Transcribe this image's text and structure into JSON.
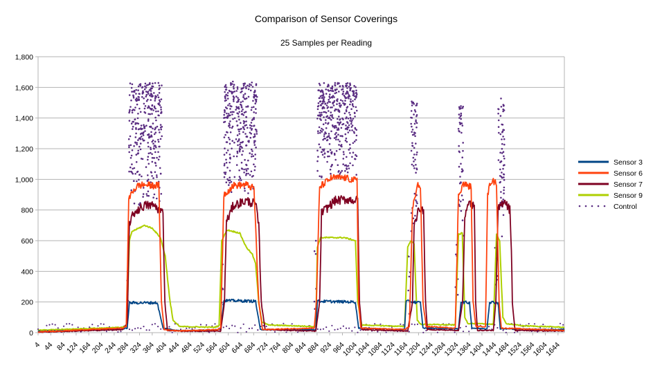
{
  "chart_data": {
    "type": "line",
    "title": "Comparison of Sensor Coverings",
    "subtitle": "25 Samples per Reading",
    "xlabel": "",
    "ylabel": "",
    "ylim": [
      0,
      1800
    ],
    "xlim": [
      4,
      1664
    ],
    "y_ticks": [
      0,
      200,
      400,
      600,
      800,
      1000,
      1200,
      1400,
      1600,
      1800
    ],
    "y_tick_labels": [
      "0",
      "200",
      "400",
      "600",
      "800",
      "1,000",
      "1,200",
      "1,400",
      "1,600",
      "1,800"
    ],
    "x_tick_labels": [
      "4",
      "44",
      "84",
      "124",
      "164",
      "204",
      "244",
      "284",
      "324",
      "364",
      "404",
      "444",
      "484",
      "524",
      "564",
      "604",
      "644",
      "684",
      "724",
      "764",
      "804",
      "844",
      "884",
      "924",
      "964",
      "1004",
      "1044",
      "1084",
      "1124",
      "1164",
      "1204",
      "1244",
      "1284",
      "1324",
      "1364",
      "1404",
      "1444",
      "1484",
      "1524",
      "1564",
      "1604",
      "1644"
    ],
    "grid": "horizontal",
    "legend_position": "right",
    "colors": {
      "Sensor 3": "#004586",
      "Sensor 6": "#ff420e",
      "Sensor 7": "#7e0021",
      "Sensor 9": "#aecf00",
      "Control": "#5a2d82"
    },
    "series": [
      {
        "name": "Sensor 3",
        "style": "line",
        "points": [
          [
            4,
            8
          ],
          [
            270,
            22
          ],
          [
            285,
            30
          ],
          [
            292,
            195
          ],
          [
            380,
            195
          ],
          [
            398,
            30
          ],
          [
            450,
            12
          ],
          [
            560,
            18
          ],
          [
            580,
            25
          ],
          [
            590,
            210
          ],
          [
            690,
            205
          ],
          [
            705,
            20
          ],
          [
            880,
            20
          ],
          [
            885,
            205
          ],
          [
            1005,
            200
          ],
          [
            1015,
            30
          ],
          [
            1150,
            20
          ],
          [
            1160,
            25
          ],
          [
            1165,
            205
          ],
          [
            1210,
            195
          ],
          [
            1218,
            30
          ],
          [
            1330,
            25
          ],
          [
            1338,
            200
          ],
          [
            1365,
            195
          ],
          [
            1372,
            30
          ],
          [
            1420,
            25
          ],
          [
            1428,
            200
          ],
          [
            1455,
            195
          ],
          [
            1462,
            25
          ],
          [
            1650,
            20
          ],
          [
            1664,
            25
          ]
        ]
      },
      {
        "name": "Sensor 6",
        "style": "line",
        "points": [
          [
            4,
            5
          ],
          [
            270,
            30
          ],
          [
            282,
            40
          ],
          [
            290,
            860
          ],
          [
            300,
            920
          ],
          [
            320,
            960
          ],
          [
            340,
            965
          ],
          [
            360,
            960
          ],
          [
            385,
            960
          ],
          [
            393,
            200
          ],
          [
            402,
            20
          ],
          [
            450,
            12
          ],
          [
            570,
            20
          ],
          [
            580,
            30
          ],
          [
            590,
            900
          ],
          [
            620,
            960
          ],
          [
            660,
            965
          ],
          [
            685,
            940
          ],
          [
            700,
            200
          ],
          [
            712,
            20
          ],
          [
            875,
            30
          ],
          [
            882,
            200
          ],
          [
            892,
            950
          ],
          [
            930,
            1010
          ],
          [
            970,
            1010
          ],
          [
            1010,
            990
          ],
          [
            1015,
            200
          ],
          [
            1022,
            30
          ],
          [
            1160,
            20
          ],
          [
            1175,
            40
          ],
          [
            1185,
            800
          ],
          [
            1200,
            970
          ],
          [
            1210,
            950
          ],
          [
            1218,
            200
          ],
          [
            1228,
            40
          ],
          [
            1320,
            30
          ],
          [
            1330,
            900
          ],
          [
            1345,
            970
          ],
          [
            1370,
            950
          ],
          [
            1376,
            200
          ],
          [
            1385,
            40
          ],
          [
            1415,
            40
          ],
          [
            1422,
            900
          ],
          [
            1432,
            990
          ],
          [
            1450,
            980
          ],
          [
            1458,
            200
          ],
          [
            1465,
            30
          ],
          [
            1664,
            15
          ]
        ]
      },
      {
        "name": "Sensor 7",
        "style": "line",
        "points": [
          [
            4,
            3
          ],
          [
            270,
            20
          ],
          [
            285,
            60
          ],
          [
            292,
            720
          ],
          [
            310,
            790
          ],
          [
            340,
            830
          ],
          [
            370,
            830
          ],
          [
            398,
            780
          ],
          [
            404,
            200
          ],
          [
            412,
            15
          ],
          [
            460,
            10
          ],
          [
            580,
            10
          ],
          [
            592,
            200
          ],
          [
            598,
            720
          ],
          [
            620,
            830
          ],
          [
            660,
            860
          ],
          [
            690,
            840
          ],
          [
            700,
            700
          ],
          [
            708,
            200
          ],
          [
            720,
            20
          ],
          [
            880,
            10
          ],
          [
            892,
            200
          ],
          [
            898,
            780
          ],
          [
            940,
            860
          ],
          [
            980,
            870
          ],
          [
            1012,
            860
          ],
          [
            1018,
            200
          ],
          [
            1025,
            20
          ],
          [
            1170,
            10
          ],
          [
            1185,
            200
          ],
          [
            1190,
            720
          ],
          [
            1210,
            820
          ],
          [
            1220,
            780
          ],
          [
            1226,
            200
          ],
          [
            1232,
            20
          ],
          [
            1330,
            15
          ],
          [
            1343,
            200
          ],
          [
            1350,
            760
          ],
          [
            1365,
            850
          ],
          [
            1380,
            820
          ],
          [
            1384,
            200
          ],
          [
            1390,
            15
          ],
          [
            1440,
            15
          ],
          [
            1448,
            200
          ],
          [
            1455,
            800
          ],
          [
            1475,
            870
          ],
          [
            1492,
            800
          ],
          [
            1497,
            560
          ],
          [
            1500,
            200
          ],
          [
            1508,
            15
          ],
          [
            1664,
            10
          ]
        ]
      },
      {
        "name": "Sensor 9",
        "style": "line",
        "points": [
          [
            4,
            15
          ],
          [
            270,
            35
          ],
          [
            284,
            45
          ],
          [
            292,
            600
          ],
          [
            300,
            660
          ],
          [
            340,
            700
          ],
          [
            365,
            680
          ],
          [
            390,
            620
          ],
          [
            405,
            500
          ],
          [
            420,
            200
          ],
          [
            430,
            80
          ],
          [
            450,
            40
          ],
          [
            560,
            35
          ],
          [
            575,
            45
          ],
          [
            583,
            600
          ],
          [
            600,
            670
          ],
          [
            640,
            650
          ],
          [
            660,
            560
          ],
          [
            680,
            510
          ],
          [
            690,
            450
          ],
          [
            700,
            200
          ],
          [
            710,
            70
          ],
          [
            730,
            50
          ],
          [
            880,
            40
          ],
          [
            885,
            560
          ],
          [
            895,
            620
          ],
          [
            970,
            620
          ],
          [
            1005,
            600
          ],
          [
            1012,
            200
          ],
          [
            1025,
            50
          ],
          [
            1160,
            40
          ],
          [
            1170,
            560
          ],
          [
            1180,
            600
          ],
          [
            1190,
            580
          ],
          [
            1200,
            80
          ],
          [
            1210,
            55
          ],
          [
            1320,
            50
          ],
          [
            1330,
            640
          ],
          [
            1342,
            650
          ],
          [
            1350,
            100
          ],
          [
            1360,
            60
          ],
          [
            1440,
            55
          ],
          [
            1450,
            640
          ],
          [
            1460,
            600
          ],
          [
            1470,
            100
          ],
          [
            1480,
            60
          ],
          [
            1530,
            45
          ],
          [
            1664,
            35
          ]
        ]
      },
      {
        "name": "Control",
        "style": "scattered-dots",
        "clusters": [
          {
            "x": [
              290,
              395
            ],
            "y": [
              800,
              1630
            ]
          },
          {
            "x": [
              590,
              695
            ],
            "y": [
              900,
              1640
            ]
          },
          {
            "x": [
              885,
              1010
            ],
            "y": [
              1000,
              1630
            ]
          },
          {
            "x": [
              1180,
              1200
            ],
            "y": [
              600,
              1520
            ]
          },
          {
            "x": [
              1330,
              1345
            ],
            "y": [
              600,
              1480
            ]
          },
          {
            "x": [
              1455,
              1475
            ],
            "y": [
              600,
              1540
            ]
          }
        ],
        "baseline_range": [
          0,
          60
        ]
      }
    ]
  }
}
